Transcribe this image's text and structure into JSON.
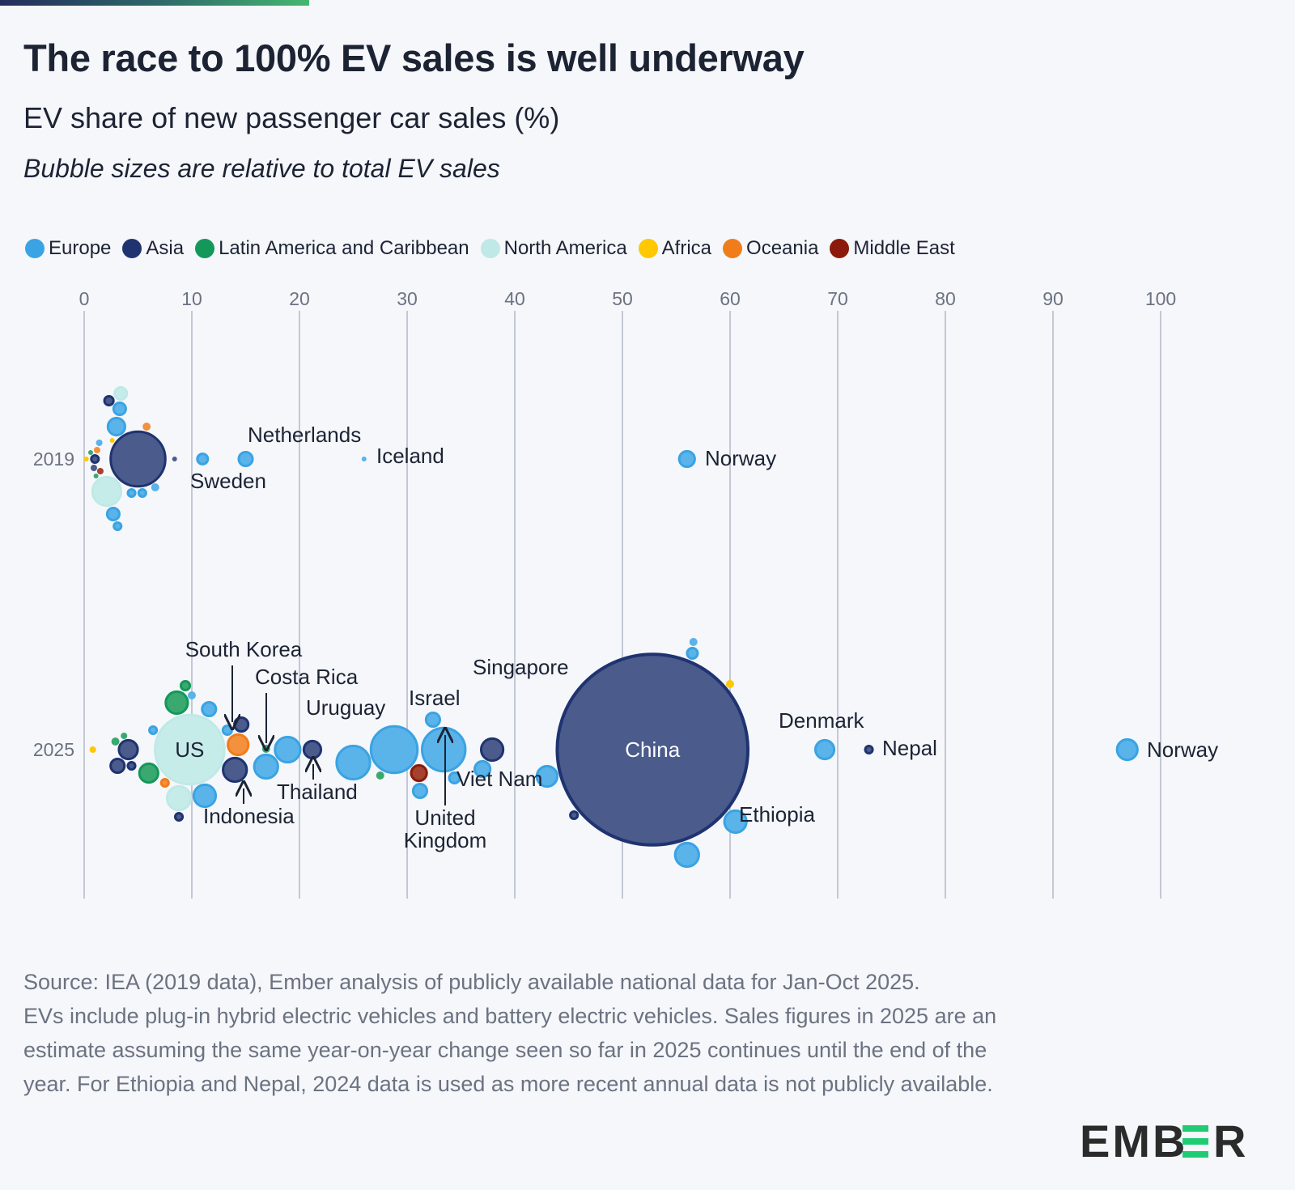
{
  "header": {
    "title": "The race to 100% EV sales is well underway",
    "subtitle": "EV share of new passenger car sales (%)",
    "note": "Bubble sizes are relative to total EV sales"
  },
  "legend": [
    {
      "label": "Europe",
      "color": "#3aa3e3"
    },
    {
      "label": "Asia",
      "color": "#1f3370"
    },
    {
      "label": "Latin America and Caribbean",
      "color": "#13985a"
    },
    {
      "label": "North America",
      "color": "#bfe9e6"
    },
    {
      "label": "Africa",
      "color": "#ffc800"
    },
    {
      "label": "Oceania",
      "color": "#f07d1a"
    },
    {
      "label": "Middle East",
      "color": "#8b1a0a"
    }
  ],
  "chart_data": {
    "type": "scatter",
    "subtype": "bubble-beeswarm",
    "title": "EV share of new passenger car sales (%)",
    "x_axis": {
      "range": [
        0,
        100
      ],
      "ticks": [
        "0",
        "10",
        "20",
        "30",
        "40",
        "50",
        "60",
        "70",
        "80",
        "90",
        "100"
      ],
      "position": "top",
      "grid": true
    },
    "y_categories": [
      "2019",
      "2025"
    ],
    "size_meaning": "relative total EV sales (China 2025 ≈ 98)",
    "legend_placement": "top-left",
    "series": [
      {
        "name": "2019",
        "points": [
          {
            "region": "Asia",
            "x": 5.0,
            "size": 8.5
          },
          {
            "region": "North America",
            "x": 2.1,
            "size": 2.5
          },
          {
            "region": "Europe",
            "x": 3.0,
            "size": 1.0
          },
          {
            "region": "Europe",
            "x": 3.3,
            "size": 0.56
          },
          {
            "region": "Europe",
            "x": 2.7,
            "size": 0.56
          },
          {
            "region": "Europe",
            "x": 3.1,
            "size": 0.25
          },
          {
            "region": "North America",
            "x": 3.4,
            "size": 0.56
          },
          {
            "region": "Asia",
            "x": 2.3,
            "size": 0.34
          },
          {
            "region": "Europe",
            "x": 5.4,
            "size": 0.25
          },
          {
            "region": "Europe",
            "x": 4.4,
            "size": 0.25
          },
          {
            "region": "Europe",
            "x": 6.6,
            "size": 0.17
          },
          {
            "region": "Asia",
            "x": 1.0,
            "size": 0.25
          },
          {
            "region": "Asia",
            "x": 0.9,
            "size": 0.11
          },
          {
            "region": "Oceania",
            "x": 1.2,
            "size": 0.11
          },
          {
            "region": "Oceania",
            "x": 5.8,
            "size": 0.17
          },
          {
            "region": "Middle East",
            "x": 1.5,
            "size": 0.11
          },
          {
            "region": "Africa",
            "x": 0.2,
            "size": 0.06
          },
          {
            "region": "Africa",
            "x": 2.6,
            "size": 0.06
          },
          {
            "region": "Latin America and Caribbean",
            "x": 0.6,
            "size": 0.06
          },
          {
            "region": "Latin America and Caribbean",
            "x": 1.1,
            "size": 0.06
          },
          {
            "region": "Europe",
            "x": 1.4,
            "size": 0.11
          },
          {
            "region": "Asia",
            "x": 8.4,
            "size": 0.06
          },
          {
            "region": "Europe",
            "x": 11.0,
            "size": 0.44,
            "label": "Sweden"
          },
          {
            "region": "Europe",
            "x": 15.0,
            "size": 0.69,
            "label": "Netherlands"
          },
          {
            "region": "Europe",
            "x": 26.0,
            "size": 0.06,
            "label": "Iceland"
          },
          {
            "region": "Europe",
            "x": 56.0,
            "size": 0.84,
            "label": "Norway"
          }
        ]
      },
      {
        "name": "2025",
        "points": [
          {
            "region": "Asia",
            "x": 52.8,
            "size": 98,
            "label": "China"
          },
          {
            "region": "North America",
            "x": 9.8,
            "size": 13.4,
            "label": "US"
          },
          {
            "region": "Europe",
            "x": 28.8,
            "size": 6.25
          },
          {
            "region": "Europe",
            "x": 33.4,
            "size": 5.44,
            "label": "United Kingdom"
          },
          {
            "region": "Europe",
            "x": 25.0,
            "size": 3.36
          },
          {
            "region": "Europe",
            "x": 18.9,
            "size": 2.0
          },
          {
            "region": "Asia",
            "x": 14.0,
            "size": 1.78,
            "label": "South Korea"
          },
          {
            "region": "Europe",
            "x": 16.9,
            "size": 1.78
          },
          {
            "region": "North America",
            "x": 8.8,
            "size": 1.78
          },
          {
            "region": "Europe",
            "x": 56.0,
            "size": 1.78
          },
          {
            "region": "Europe",
            "x": 11.2,
            "size": 1.56
          },
          {
            "region": "Latin America and Caribbean",
            "x": 8.6,
            "size": 1.56
          },
          {
            "region": "Europe",
            "x": 60.5,
            "size": 1.56
          },
          {
            "region": "Asia",
            "x": 37.9,
            "size": 1.56,
            "label": "Viet Nam"
          },
          {
            "region": "Oceania",
            "x": 14.3,
            "size": 1.36
          },
          {
            "region": "Europe",
            "x": 43.0,
            "size": 1.36
          },
          {
            "region": "Europe",
            "x": 96.9,
            "size": 1.36,
            "label": "Norway"
          },
          {
            "region": "Europe",
            "x": 68.8,
            "size": 1.17,
            "label": "Denmark"
          },
          {
            "region": "Asia",
            "x": 4.1,
            "size": 1.17
          },
          {
            "region": "Latin America and Caribbean",
            "x": 6.0,
            "size": 1.17
          },
          {
            "region": "Asia",
            "x": 21.2,
            "size": 1.0,
            "label": "Thailand"
          },
          {
            "region": "Middle East",
            "x": 31.1,
            "size": 0.84,
            "label": "Israel"
          },
          {
            "region": "Europe",
            "x": 37.0,
            "size": 0.84
          },
          {
            "region": "Asia",
            "x": 14.6,
            "size": 0.69,
            "label": "Indonesia"
          },
          {
            "region": "Europe",
            "x": 11.6,
            "size": 0.69
          },
          {
            "region": "Europe",
            "x": 32.4,
            "size": 0.69
          },
          {
            "region": "Europe",
            "x": 31.2,
            "size": 0.69
          },
          {
            "region": "Asia",
            "x": 3.1,
            "size": 0.69
          },
          {
            "region": "Europe",
            "x": 34.4,
            "size": 0.44
          },
          {
            "region": "Europe",
            "x": 56.5,
            "size": 0.44
          },
          {
            "region": "Latin America and Caribbean",
            "x": 9.4,
            "size": 0.34
          },
          {
            "region": "Europe",
            "x": 13.3,
            "size": 0.34
          },
          {
            "region": "Asia",
            "x": 4.4,
            "size": 0.25
          },
          {
            "region": "Oceania",
            "x": 7.5,
            "size": 0.25
          },
          {
            "region": "Asia",
            "x": 8.8,
            "size": 0.25
          },
          {
            "region": "Europe",
            "x": 6.4,
            "size": 0.25
          },
          {
            "region": "Asia",
            "x": 45.5,
            "size": 0.25,
            "label": "Singapore"
          },
          {
            "region": "Asia",
            "x": 72.9,
            "size": 0.25,
            "label": "Nepal"
          },
          {
            "region": "Latin America and Caribbean",
            "x": 2.9,
            "size": 0.17
          },
          {
            "region": "Latin America and Caribbean",
            "x": 16.9,
            "size": 0.17,
            "label": "Costa Rica"
          },
          {
            "region": "Latin America and Caribbean",
            "x": 27.5,
            "size": 0.17,
            "label": "Uruguay"
          },
          {
            "region": "Europe",
            "x": 10.0,
            "size": 0.17
          },
          {
            "region": "Europe",
            "x": 56.6,
            "size": 0.17
          },
          {
            "region": "Africa",
            "x": 60.0,
            "size": 0.17,
            "label": "Ethiopia"
          },
          {
            "region": "Latin America and Caribbean",
            "x": 3.7,
            "size": 0.11
          },
          {
            "region": "Africa",
            "x": 0.8,
            "size": 0.11
          }
        ]
      }
    ]
  },
  "annotations": {
    "netherlands": "Netherlands",
    "sweden": "Sweden",
    "iceland": "Iceland",
    "norway_2019": "Norway",
    "south_korea": "South Korea",
    "costa_rica": "Costa Rica",
    "uruguay": "Uruguay",
    "israel": "Israel",
    "singapore": "Singapore",
    "thailand": "Thailand",
    "indonesia": "Indonesia",
    "viet_nam": "Viet Nam",
    "united": "United",
    "kingdom": "Kingdom",
    "china": "China",
    "us": "US",
    "denmark": "Denmark",
    "nepal": "Nepal",
    "norway_2025": "Norway",
    "ethiopia": "Ethiopia"
  },
  "footer": {
    "source": "Source: IEA (2019 data), Ember analysis of publicly available national data for Jan-Oct 2025.",
    "notes": "EVs include plug-in hybrid electric vehicles and battery electric vehicles. Sales figures in 2025 are an estimate assuming the same year-on-year change seen so far in 2025 continues until the end of the year. For Ethiopia and Nepal, 2024 data is used as more recent annual data is not publicly available."
  },
  "logo": {
    "text": "EMBER",
    "accent": "#1fcc74"
  }
}
